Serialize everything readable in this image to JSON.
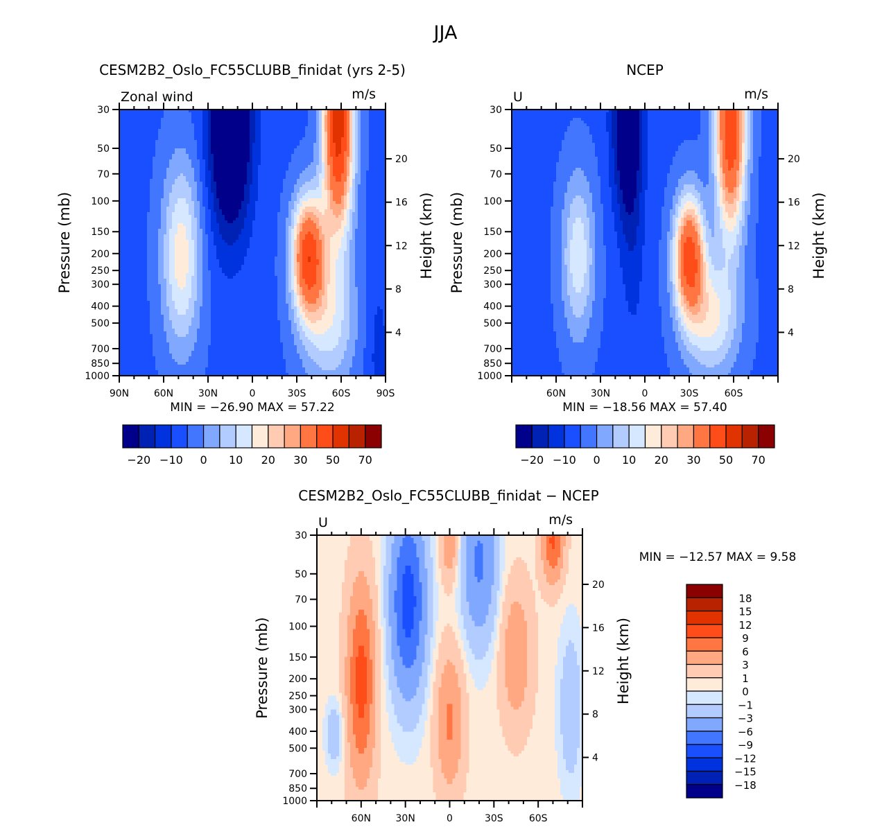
{
  "figure_title": "JJA",
  "chart_data": [
    {
      "type": "heatmap",
      "subtype": "filled-contour",
      "title": "CESM2B2_Oslo_FC55CLUBB_finidat (yrs 2-5)",
      "left_string": "Zonal wind",
      "right_string": "m/s",
      "xlabel": "",
      "ylabel": "Pressure (mb)",
      "ylabel_right": "Height (km)",
      "x_range": [
        90,
        -90
      ],
      "x_tick_labels": [
        "90N",
        "60N",
        "30N",
        "0",
        "30S",
        "60S",
        "90S"
      ],
      "y_scale": "log",
      "y_range": [
        1000,
        30
      ],
      "y_tick_labels": [
        "30",
        "50",
        "70",
        "100",
        "150",
        "200",
        "250",
        "300",
        "400",
        "500",
        "700",
        "850",
        "1000"
      ],
      "y_right_tick_labels": [
        "20",
        "16",
        "12",
        "8",
        "4"
      ],
      "stats": "MIN = −26.90   MAX =   57.22",
      "min": -26.9,
      "max": 57.22,
      "colorbar": {
        "orientation": "horizontal",
        "levels": [
          -20,
          -15,
          -10,
          -5,
          0,
          5,
          10,
          15,
          20,
          25,
          30,
          40,
          50,
          60,
          70
        ],
        "labels": [
          "−20",
          "−10",
          "0",
          "10",
          "20",
          "30",
          "50",
          "70"
        ]
      },
      "features": [
        {
          "name": "SH subtropical/polar jet",
          "lat": "30S-60S",
          "max_ms": 57.22,
          "level_mb": 200
        },
        {
          "name": "tropical easterlies",
          "lat": "EQ-30N",
          "min_ms": -26.9,
          "level_mb": "30-100"
        },
        {
          "name": "NH westerly jet",
          "lat": "45N",
          "peak_ms": 20,
          "level_mb": 200
        }
      ]
    },
    {
      "type": "heatmap",
      "subtype": "filled-contour",
      "title": "NCEP",
      "left_string": "U",
      "right_string": "m/s",
      "ylabel": "Pressure (mb)",
      "ylabel_right": "Height (km)",
      "x_tick_labels": [
        "60N",
        "30N",
        "0",
        "30S",
        "60S"
      ],
      "y_scale": "log",
      "y_range": [
        1000,
        30
      ],
      "y_tick_labels": [
        "30",
        "50",
        "70",
        "100",
        "150",
        "200",
        "250",
        "300",
        "400",
        "500",
        "700",
        "850",
        "1000"
      ],
      "y_right_tick_labels": [
        "20",
        "16",
        "12",
        "8",
        "4"
      ],
      "stats": "MIN = −18.56   MAX =   57.40",
      "min": -18.56,
      "max": 57.4,
      "colorbar": {
        "orientation": "horizontal",
        "levels": [
          -20,
          -15,
          -10,
          -5,
          0,
          5,
          10,
          15,
          20,
          25,
          30,
          40,
          50,
          60,
          70
        ],
        "labels": [
          "−20",
          "−10",
          "0",
          "10",
          "20",
          "30",
          "50",
          "70"
        ]
      }
    },
    {
      "type": "heatmap",
      "subtype": "filled-contour",
      "title": "CESM2B2_Oslo_FC55CLUBB_finidat − NCEP",
      "left_string": "U",
      "right_string": "m/s",
      "ylabel": "Pressure (mb)",
      "ylabel_right": "Height (km)",
      "x_tick_labels": [
        "60N",
        "30N",
        "0",
        "30S",
        "60S"
      ],
      "y_scale": "log",
      "y_range": [
        1000,
        30
      ],
      "y_tick_labels": [
        "30",
        "50",
        "70",
        "100",
        "150",
        "200",
        "250",
        "300",
        "400",
        "500",
        "700",
        "850",
        "1000"
      ],
      "y_right_tick_labels": [
        "20",
        "16",
        "12",
        "8",
        "4"
      ],
      "stats": "MIN = −12.57   MAX =    9.58",
      "min": -12.57,
      "max": 9.58,
      "colorbar": {
        "orientation": "vertical",
        "levels": [
          -18,
          -15,
          -12,
          -9,
          -6,
          -3,
          -1,
          0,
          1,
          3,
          6,
          9,
          12,
          15,
          18
        ],
        "labels": [
          "18",
          "15",
          "12",
          "9",
          "6",
          "3",
          "1",
          "0",
          "−1",
          "−3",
          "−6",
          "−9",
          "−12",
          "−15",
          "−18"
        ]
      }
    }
  ],
  "palette": [
    "#00008b",
    "#0022b4",
    "#0033dd",
    "#1a4fff",
    "#4276ff",
    "#80a8ff",
    "#b3ccff",
    "#d6e8ff",
    "#ffebd9",
    "#ffcbb3",
    "#ffa882",
    "#ff7642",
    "#ff4d1a",
    "#e03300",
    "#b82200",
    "#8b0000"
  ]
}
